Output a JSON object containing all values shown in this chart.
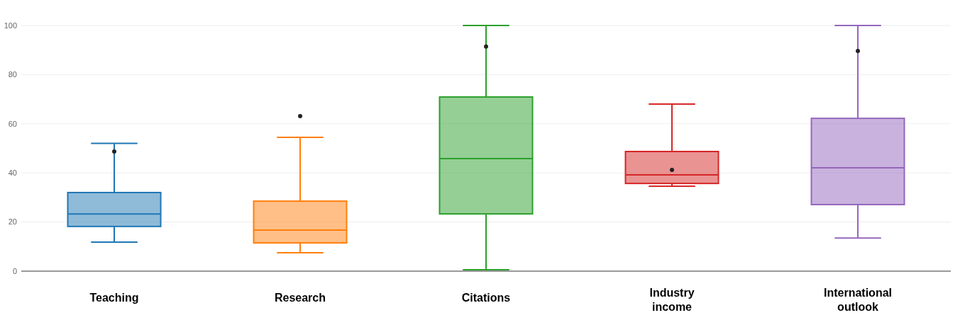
{
  "chart_data": {
    "type": "box",
    "categories": [
      "Teaching",
      "Research",
      "Citations",
      "Industry income",
      "International outlook"
    ],
    "boxes": [
      {
        "low": 11.8,
        "q1": 18.2,
        "median": 23.3,
        "q3": 32,
        "high": 52
      },
      {
        "low": 7.5,
        "q1": 11.5,
        "median": 16.7,
        "q3": 28.5,
        "high": 54.5
      },
      {
        "low": 0.6,
        "q1": 23.3,
        "median": 45.8,
        "q3": 70.9,
        "high": 100
      },
      {
        "low": 34.6,
        "q1": 35.7,
        "median": 39.2,
        "q3": 48.7,
        "high": 68
      },
      {
        "low": 13.5,
        "q1": 27.1,
        "median": 42.1,
        "q3": 62.2,
        "high": 100
      }
    ],
    "colors": [
      "#1f77b4",
      "#ff7f0e",
      "#2ca02c",
      "#d62728",
      "#9467bd"
    ],
    "series": [
      {
        "type": "scatter",
        "x": [
          "Teaching",
          "Research",
          "Citations",
          "Industry income",
          "International outlook"
        ],
        "values": [
          48.7,
          63.1,
          91.4,
          41.2,
          89.6
        ],
        "color": "#222222"
      }
    ],
    "ylim": [
      0,
      100
    ],
    "yticks": [
      0,
      20,
      40,
      60,
      80,
      100
    ],
    "grid": "y",
    "marker": "circle"
  }
}
